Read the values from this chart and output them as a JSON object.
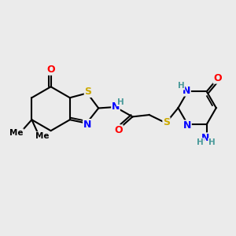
{
  "bg_color": "#ebebeb",
  "atom_colors": {
    "C": "#000000",
    "N": "#0000ff",
    "O": "#ff0000",
    "S": "#ccaa00",
    "H": "#4a9a9a"
  },
  "bond_color": "#000000",
  "bond_width": 1.5,
  "font_size": 9,
  "fig_bg": "#ebebeb"
}
